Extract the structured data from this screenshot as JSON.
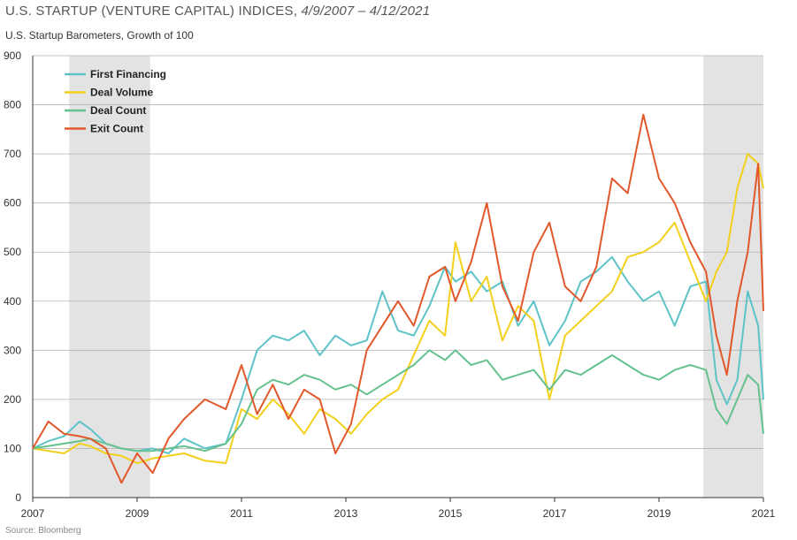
{
  "header": {
    "title_main": "U.S. STARTUP (VENTURE CAPITAL) INDICES, ",
    "title_range": "4/9/2007 – 4/12/2021",
    "subtitle": "U.S. Startup Barometers, Growth of 100"
  },
  "footer": {
    "source": "Source: Bloomberg"
  },
  "chart_data": {
    "type": "line",
    "title": "U.S. STARTUP (VENTURE CAPITAL) INDICES, 4/9/2007 – 4/12/2021",
    "subtitle": "U.S. Startup Barometers, Growth of 100",
    "xlim": [
      2007,
      2021
    ],
    "ylim": [
      0,
      900
    ],
    "x_ticks": [
      "2007",
      "2009",
      "2011",
      "2013",
      "2015",
      "2017",
      "2019",
      "2021"
    ],
    "x_tick_values": [
      2007,
      2009,
      2011,
      2013,
      2015,
      2017,
      2019,
      2021
    ],
    "y_ticks": [
      "0",
      "100",
      "200",
      "300",
      "400",
      "500",
      "600",
      "700",
      "800",
      "900"
    ],
    "y_tick_values": [
      0,
      100,
      200,
      300,
      400,
      500,
      600,
      700,
      800,
      900
    ],
    "grid": "horizontal",
    "legend_position": "top-left",
    "shaded_periods": [
      [
        2007.7,
        2009.25
      ],
      [
        2019.85,
        2021.0
      ]
    ],
    "series": [
      {
        "name": "First Financing",
        "color": "#5ec3c8",
        "x": [
          2007.0,
          2007.3,
          2007.6,
          2007.9,
          2008.1,
          2008.4,
          2008.7,
          2009.0,
          2009.3,
          2009.6,
          2009.9,
          2010.3,
          2010.7,
          2011.0,
          2011.3,
          2011.6,
          2011.9,
          2012.2,
          2012.5,
          2012.8,
          2013.1,
          2013.4,
          2013.7,
          2014.0,
          2014.3,
          2014.6,
          2014.9,
          2015.1,
          2015.4,
          2015.7,
          2016.0,
          2016.3,
          2016.6,
          2016.9,
          2017.2,
          2017.5,
          2017.8,
          2018.1,
          2018.4,
          2018.7,
          2019.0,
          2019.3,
          2019.6,
          2019.9,
          2020.1,
          2020.3,
          2020.5,
          2020.7,
          2020.9,
          2021.0
        ],
        "y": [
          100,
          115,
          125,
          155,
          140,
          110,
          100,
          95,
          100,
          90,
          120,
          100,
          110,
          200,
          300,
          330,
          320,
          340,
          290,
          330,
          310,
          320,
          420,
          340,
          330,
          390,
          470,
          440,
          460,
          420,
          440,
          350,
          400,
          310,
          360,
          440,
          460,
          490,
          440,
          400,
          420,
          350,
          430,
          440,
          240,
          190,
          240,
          420,
          350,
          200
        ]
      },
      {
        "name": "Deal Volume",
        "color": "#f2d01b",
        "x": [
          2007.0,
          2007.3,
          2007.6,
          2007.9,
          2008.1,
          2008.4,
          2008.7,
          2009.0,
          2009.3,
          2009.6,
          2009.9,
          2010.3,
          2010.7,
          2011.0,
          2011.3,
          2011.6,
          2011.9,
          2012.2,
          2012.5,
          2012.8,
          2013.1,
          2013.4,
          2013.7,
          2014.0,
          2014.3,
          2014.6,
          2014.9,
          2015.1,
          2015.4,
          2015.7,
          2016.0,
          2016.3,
          2016.6,
          2016.9,
          2017.2,
          2017.5,
          2017.8,
          2018.1,
          2018.4,
          2018.7,
          2019.0,
          2019.3,
          2019.6,
          2019.9,
          2020.1,
          2020.3,
          2020.5,
          2020.7,
          2020.9,
          2021.0
        ],
        "y": [
          100,
          95,
          90,
          110,
          105,
          90,
          85,
          70,
          80,
          85,
          90,
          75,
          70,
          180,
          160,
          200,
          170,
          130,
          180,
          160,
          130,
          170,
          200,
          220,
          290,
          360,
          330,
          520,
          400,
          450,
          320,
          390,
          360,
          200,
          330,
          360,
          390,
          420,
          490,
          500,
          520,
          560,
          480,
          400,
          460,
          500,
          630,
          700,
          680,
          630
        ]
      },
      {
        "name": "Deal Count",
        "color": "#65c28e",
        "x": [
          2007.0,
          2007.3,
          2007.6,
          2007.9,
          2008.1,
          2008.4,
          2008.7,
          2009.0,
          2009.3,
          2009.6,
          2009.9,
          2010.3,
          2010.7,
          2011.0,
          2011.3,
          2011.6,
          2011.9,
          2012.2,
          2012.5,
          2012.8,
          2013.1,
          2013.4,
          2013.7,
          2014.0,
          2014.3,
          2014.6,
          2014.9,
          2015.1,
          2015.4,
          2015.7,
          2016.0,
          2016.3,
          2016.6,
          2016.9,
          2017.2,
          2017.5,
          2017.8,
          2018.1,
          2018.4,
          2018.7,
          2019.0,
          2019.3,
          2019.6,
          2019.9,
          2020.1,
          2020.3,
          2020.5,
          2020.7,
          2020.9,
          2021.0
        ],
        "y": [
          100,
          105,
          110,
          115,
          120,
          110,
          100,
          95,
          95,
          100,
          105,
          95,
          110,
          150,
          220,
          240,
          230,
          250,
          240,
          220,
          230,
          210,
          230,
          250,
          270,
          300,
          280,
          300,
          270,
          280,
          240,
          250,
          260,
          220,
          260,
          250,
          270,
          290,
          270,
          250,
          240,
          260,
          270,
          260,
          180,
          150,
          200,
          250,
          230,
          130
        ]
      },
      {
        "name": "Exit Count",
        "color": "#e2582b",
        "x": [
          2007.0,
          2007.3,
          2007.6,
          2007.9,
          2008.1,
          2008.4,
          2008.7,
          2009.0,
          2009.3,
          2009.6,
          2009.9,
          2010.3,
          2010.7,
          2011.0,
          2011.3,
          2011.6,
          2011.9,
          2012.2,
          2012.5,
          2012.8,
          2013.1,
          2013.4,
          2013.7,
          2014.0,
          2014.3,
          2014.6,
          2014.9,
          2015.1,
          2015.4,
          2015.7,
          2016.0,
          2016.3,
          2016.6,
          2016.9,
          2017.2,
          2017.5,
          2017.8,
          2018.1,
          2018.4,
          2018.7,
          2019.0,
          2019.3,
          2019.6,
          2019.9,
          2020.1,
          2020.3,
          2020.5,
          2020.7,
          2020.9,
          2021.0
        ],
        "y": [
          100,
          155,
          130,
          125,
          120,
          100,
          30,
          90,
          50,
          120,
          160,
          200,
          180,
          270,
          170,
          230,
          160,
          220,
          200,
          90,
          150,
          300,
          350,
          400,
          350,
          450,
          470,
          400,
          480,
          600,
          430,
          360,
          500,
          560,
          430,
          400,
          470,
          650,
          620,
          780,
          650,
          600,
          520,
          460,
          330,
          250,
          400,
          500,
          680,
          380
        ]
      }
    ]
  }
}
